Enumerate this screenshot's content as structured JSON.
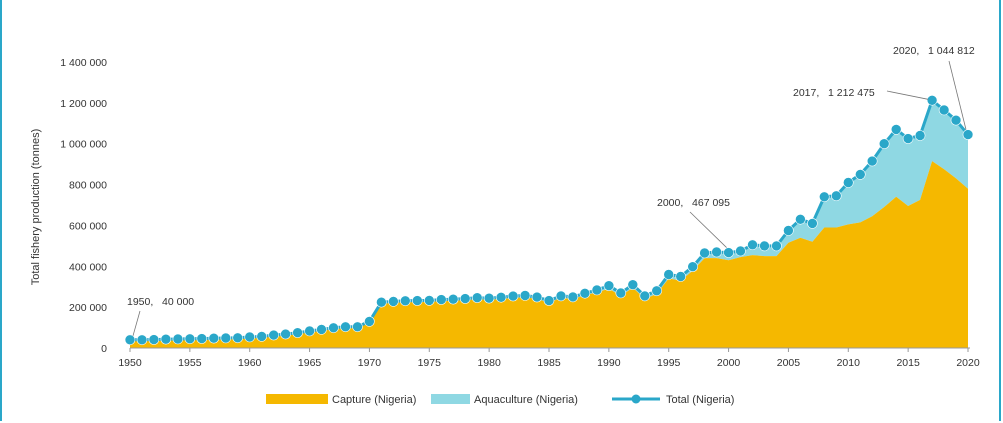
{
  "chart_data": {
    "type": "area",
    "ylabel": "Total fishery production (tonnes)",
    "xlabel": "",
    "xlim": [
      1950,
      2020
    ],
    "ylim": [
      0,
      1400000
    ],
    "x_ticks": [
      1950,
      1955,
      1960,
      1965,
      1970,
      1975,
      1980,
      1985,
      1990,
      1995,
      2000,
      2005,
      2010,
      2015,
      2020
    ],
    "y_ticks": [
      {
        "value": 0,
        "label": "0"
      },
      {
        "value": 200000,
        "label": "200 000"
      },
      {
        "value": 400000,
        "label": "400 000"
      },
      {
        "value": 600000,
        "label": "600 000"
      },
      {
        "value": 800000,
        "label": "800 000"
      },
      {
        "value": 1000000,
        "label": "1 000 000"
      },
      {
        "value": 1200000,
        "label": "1 200 000"
      },
      {
        "value": 1400000,
        "label": "1 400 000"
      }
    ],
    "x": [
      1950,
      1951,
      1952,
      1953,
      1954,
      1955,
      1956,
      1957,
      1958,
      1959,
      1960,
      1961,
      1962,
      1963,
      1964,
      1965,
      1966,
      1967,
      1968,
      1969,
      1970,
      1971,
      1972,
      1973,
      1974,
      1975,
      1976,
      1977,
      1978,
      1979,
      1980,
      1981,
      1982,
      1983,
      1984,
      1985,
      1986,
      1987,
      1988,
      1989,
      1990,
      1991,
      1992,
      1993,
      1994,
      1995,
      1996,
      1997,
      1998,
      1999,
      2000,
      2001,
      2002,
      2003,
      2004,
      2005,
      2006,
      2007,
      2008,
      2009,
      2010,
      2011,
      2012,
      2013,
      2014,
      2015,
      2016,
      2017,
      2018,
      2019,
      2020
    ],
    "series": [
      {
        "name": "Capture (Nigeria)",
        "type": "area",
        "color": "#f5b800",
        "values": [
          38000,
          38000,
          39000,
          41000,
          42000,
          43000,
          44000,
          46000,
          47000,
          48000,
          52000,
          55000,
          60000,
          65000,
          72000,
          80000,
          88000,
          95000,
          100000,
          100000,
          125000,
          218000,
          222000,
          225000,
          226000,
          227000,
          230000,
          232000,
          235000,
          238000,
          236000,
          240000,
          245000,
          248000,
          240000,
          222000,
          245000,
          240000,
          258000,
          272000,
          290000,
          255000,
          295000,
          240000,
          265000,
          340000,
          330000,
          378000,
          440000,
          440000,
          430000,
          445000,
          455000,
          450000,
          450000,
          515000,
          540000,
          520000,
          590000,
          590000,
          605000,
          615000,
          645000,
          690000,
          740000,
          695000,
          725000,
          915000,
          875000,
          830000,
          780000
        ]
      },
      {
        "name": "Aquaculture (Nigeria)",
        "type": "area",
        "color": "#8fd8e3",
        "values": [
          2000,
          2000,
          2000,
          2000,
          2000,
          2000,
          2000,
          2000,
          2000,
          2000,
          2000,
          2000,
          3000,
          3000,
          3000,
          3000,
          3000,
          4000,
          4000,
          4000,
          5000,
          6000,
          6000,
          6000,
          6000,
          6000,
          7000,
          7000,
          7000,
          8000,
          8000,
          8000,
          9000,
          9000,
          9000,
          10000,
          10000,
          10000,
          10000,
          12000,
          15000,
          14000,
          15000,
          15000,
          15000,
          20000,
          20000,
          20000,
          25000,
          30000,
          37095,
          30000,
          50000,
          50000,
          50000,
          60000,
          90000,
          90000,
          150000,
          155000,
          205000,
          235000,
          270000,
          310000,
          330000,
          330000,
          315000,
          297475,
          290000,
          285000,
          264812
        ]
      },
      {
        "name": "Total (Nigeria)",
        "type": "line",
        "color": "#2aa7c9",
        "values": [
          40000,
          40000,
          41000,
          43000,
          44000,
          45000,
          46000,
          48000,
          49000,
          50000,
          54000,
          57000,
          63000,
          68000,
          75000,
          83000,
          91000,
          99000,
          104000,
          104000,
          130000,
          224000,
          228000,
          231000,
          232000,
          233000,
          237000,
          239000,
          242000,
          246000,
          244000,
          248000,
          254000,
          257000,
          249000,
          232000,
          255000,
          250000,
          268000,
          284000,
          305000,
          269000,
          310000,
          255000,
          280000,
          360000,
          350000,
          398000,
          465000,
          470000,
          467095,
          475000,
          505000,
          500000,
          500000,
          575000,
          630000,
          610000,
          740000,
          745000,
          810000,
          850000,
          915000,
          1000000,
          1070000,
          1025000,
          1040000,
          1212475,
          1165000,
          1115000,
          1044812
        ]
      }
    ],
    "annotations": [
      {
        "x": 1950,
        "y": 40000,
        "label_year": "1950,",
        "label_value": "40 000"
      },
      {
        "x": 2000,
        "y": 467095,
        "label_year": "2000,",
        "label_value": "467 095"
      },
      {
        "x": 2017,
        "y": 1212475,
        "label_year": "2017,",
        "label_value": "1 212 475"
      },
      {
        "x": 2020,
        "y": 1044812,
        "label_year": "2020,",
        "label_value": "1 044 812"
      }
    ],
    "legend": {
      "placement": "bottom",
      "items": [
        {
          "label": "Capture (Nigeria)",
          "kind": "area",
          "color": "#f5b800"
        },
        {
          "label": "Aquaculture (Nigeria)",
          "kind": "area",
          "color": "#8fd8e3"
        },
        {
          "label": "Total (Nigeria)",
          "kind": "line",
          "color": "#2aa7c9"
        }
      ]
    },
    "grid": {
      "y": false,
      "x": false
    }
  }
}
